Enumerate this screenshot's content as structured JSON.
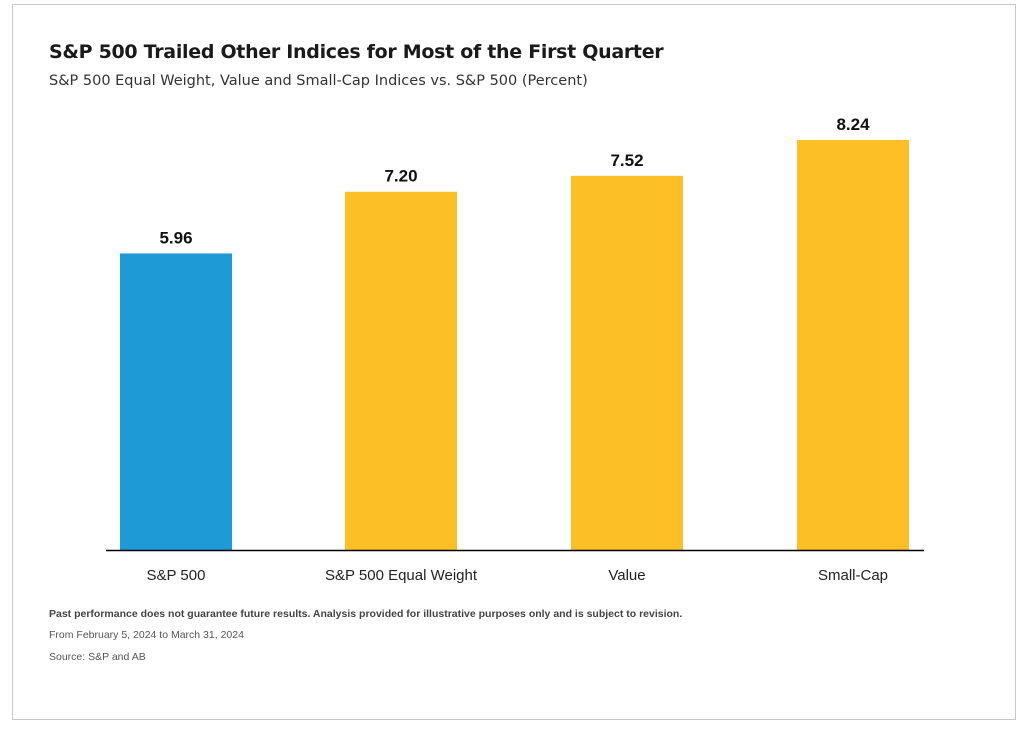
{
  "colors": {
    "highlight": "#1e9bd7",
    "bar": "#fdbf26",
    "axis": "#000000"
  },
  "chart_data": {
    "type": "bar",
    "title": "S&P 500 Trailed Other Indices for Most of the First Quarter",
    "subtitle": "S&P 500 Equal Weight, Value and Small-Cap Indices vs. S&P 500 (Percent)",
    "categories": [
      "S&P 500",
      "S&P 500 Equal Weight",
      "Value",
      "Small-Cap"
    ],
    "values": [
      5.96,
      7.2,
      7.52,
      8.24
    ],
    "data_labels": [
      "5.96",
      "7.20",
      "7.52",
      "8.24"
    ],
    "ylim": [
      0,
      9.2
    ],
    "grid": false,
    "legend": "none",
    "bar_colors": [
      "#1e9bd7",
      "#fdbf26",
      "#fdbf26",
      "#fdbf26"
    ]
  },
  "footnotes": {
    "disclaimer": "Past performance does not guarantee future results. Analysis provided for illustrative purposes only and is subject to revision.",
    "period": "From February 5, 2024 to March 31, 2024",
    "source": "Source: S&P and AB"
  }
}
